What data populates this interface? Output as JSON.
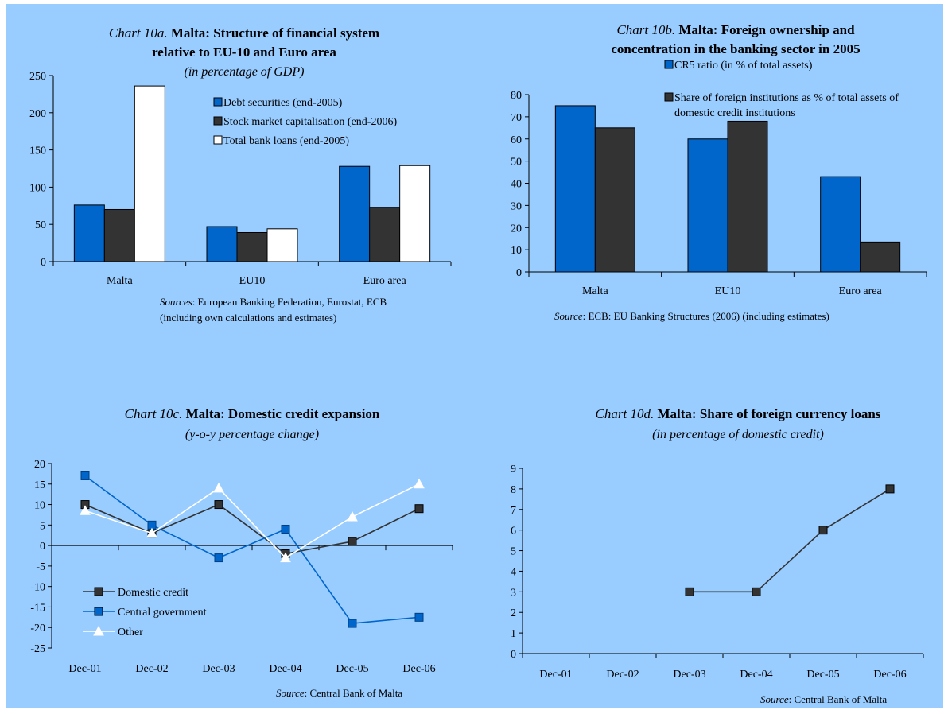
{
  "colors": {
    "background": "#99ccff",
    "blue": "#0066cc",
    "dark": "#333333",
    "white": "#ffffff"
  },
  "chart_data": [
    {
      "id": "10a",
      "type": "bar",
      "title_prefix": "Chart 10a.",
      "title_bold_1": "Malta: Structure of financial system",
      "title_bold_2": "relative to EU-10 and Euro area",
      "subtitle": "(in percentage of GDP)",
      "categories": [
        "Malta",
        "EU10",
        "Euro area"
      ],
      "series": [
        {
          "name": "Debt securities (end-2005)",
          "color": "#0066cc",
          "values": [
            76,
            47,
            128
          ]
        },
        {
          "name": "Stock market capitalisation (end-2006)",
          "color": "#333333",
          "values": [
            70,
            39,
            73
          ]
        },
        {
          "name": "Total bank loans (end-2005)",
          "color": "#ffffff",
          "values": [
            236,
            44,
            129
          ]
        }
      ],
      "ylim": [
        0,
        250
      ],
      "yticks": [
        0,
        50,
        100,
        150,
        200,
        250
      ],
      "source_label": "Sources",
      "source_text_1": ": European Banking Federation, Eurostat, ECB",
      "source_text_2": "(including own calculations and estimates)"
    },
    {
      "id": "10b",
      "type": "bar",
      "title_prefix": "Chart 10b.",
      "title_bold_1": "Malta: Foreign ownership and",
      "title_bold_2": "concentration in the banking sector in 2005",
      "categories": [
        "Malta",
        "EU10",
        "Euro area"
      ],
      "series": [
        {
          "name": "CR5 ratio (in % of total assets)",
          "color": "#0066cc",
          "values": [
            75,
            60,
            43
          ]
        },
        {
          "name": "Share of foreign institutions as % of total assets of domestic credit institutions",
          "name_line1": "Share of foreign institutions as % of total assets of",
          "name_line2": "domestic credit institutions",
          "color": "#333333",
          "values": [
            65,
            68,
            13.5
          ]
        }
      ],
      "ylim": [
        0,
        80
      ],
      "yticks": [
        0,
        10,
        20,
        30,
        40,
        50,
        60,
        70,
        80
      ],
      "source_label": "Source",
      "source_text_1": ": ECB: EU Banking Structures (2006) (including estimates)"
    },
    {
      "id": "10c",
      "type": "line",
      "title_prefix": "Chart 10c.",
      "title_bold_1": "Malta: Domestic credit expansion",
      "subtitle": "(y-o-y percentage change)",
      "x": [
        "Dec-01",
        "Dec-02",
        "Dec-03",
        "Dec-04",
        "Dec-05",
        "Dec-06"
      ],
      "series": [
        {
          "name": "Domestic credit",
          "color": "#333333",
          "marker": "square",
          "values": [
            10,
            3,
            10,
            -2,
            1,
            9
          ]
        },
        {
          "name": "Central government",
          "color": "#0066cc",
          "marker": "square",
          "values": [
            17,
            5,
            -3,
            4,
            -19,
            -17.5
          ]
        },
        {
          "name": "Other",
          "color": "#ffffff",
          "marker": "triangle",
          "values": [
            8.5,
            3,
            14,
            -3,
            7,
            15
          ]
        }
      ],
      "ylim": [
        -25,
        20
      ],
      "yticks": [
        -25,
        -20,
        -15,
        -10,
        -5,
        0,
        5,
        10,
        15,
        20
      ],
      "source_label": "Source",
      "source_text_1": ": Central Bank of Malta"
    },
    {
      "id": "10d",
      "type": "line",
      "title_prefix": "Chart 10d.",
      "title_bold_1": "Malta: Share of foreign currency loans",
      "subtitle": "(in percentage of domestic credit)",
      "x": [
        "Dec-01",
        "Dec-02",
        "Dec-03",
        "Dec-04",
        "Dec-05",
        "Dec-06"
      ],
      "series": [
        {
          "color": "#333333",
          "marker": "square",
          "values": [
            null,
            null,
            3,
            3,
            6,
            8
          ]
        }
      ],
      "ylim": [
        0,
        9
      ],
      "yticks": [
        0,
        1,
        2,
        3,
        4,
        5,
        6,
        7,
        8,
        9
      ],
      "source_label": "Source",
      "source_text_1": ": Central Bank of Malta"
    }
  ]
}
